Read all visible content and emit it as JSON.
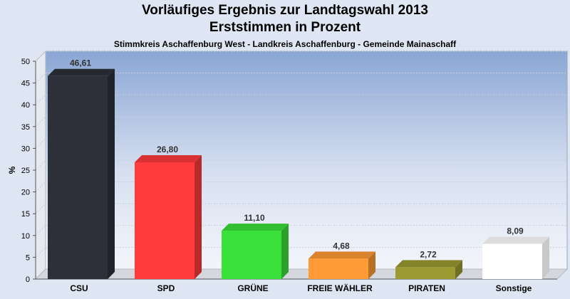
{
  "chart_data": {
    "type": "bar",
    "title": "Vorläufiges Ergebnis zur Landtagswahl 2013",
    "subtitle": "Erststimmen in Prozent",
    "caption": "Stimmkreis Aschaffenburg West - Landkreis Aschaffenburg - Gemeinde Mainaschaff",
    "ylabel": "%",
    "xlabel": "",
    "ylim": [
      0,
      50
    ],
    "yticks": [
      0,
      5,
      10,
      15,
      20,
      25,
      30,
      35,
      40,
      45,
      50
    ],
    "grid": true,
    "categories": [
      "CSU",
      "SPD",
      "GRÜNE",
      "FREIE WÄHLER",
      "PIRATEN",
      "Sonstige"
    ],
    "values": [
      46.61,
      26.8,
      11.1,
      4.68,
      2.72,
      8.09
    ],
    "value_labels": [
      "46,61",
      "26,80",
      "11,10",
      "4,68",
      "2,72",
      "8,09"
    ],
    "colors": [
      "#2d3039",
      "#ff3b3b",
      "#3ae03a",
      "#ff9a35",
      "#9a9a30",
      "#ffffff"
    ]
  }
}
